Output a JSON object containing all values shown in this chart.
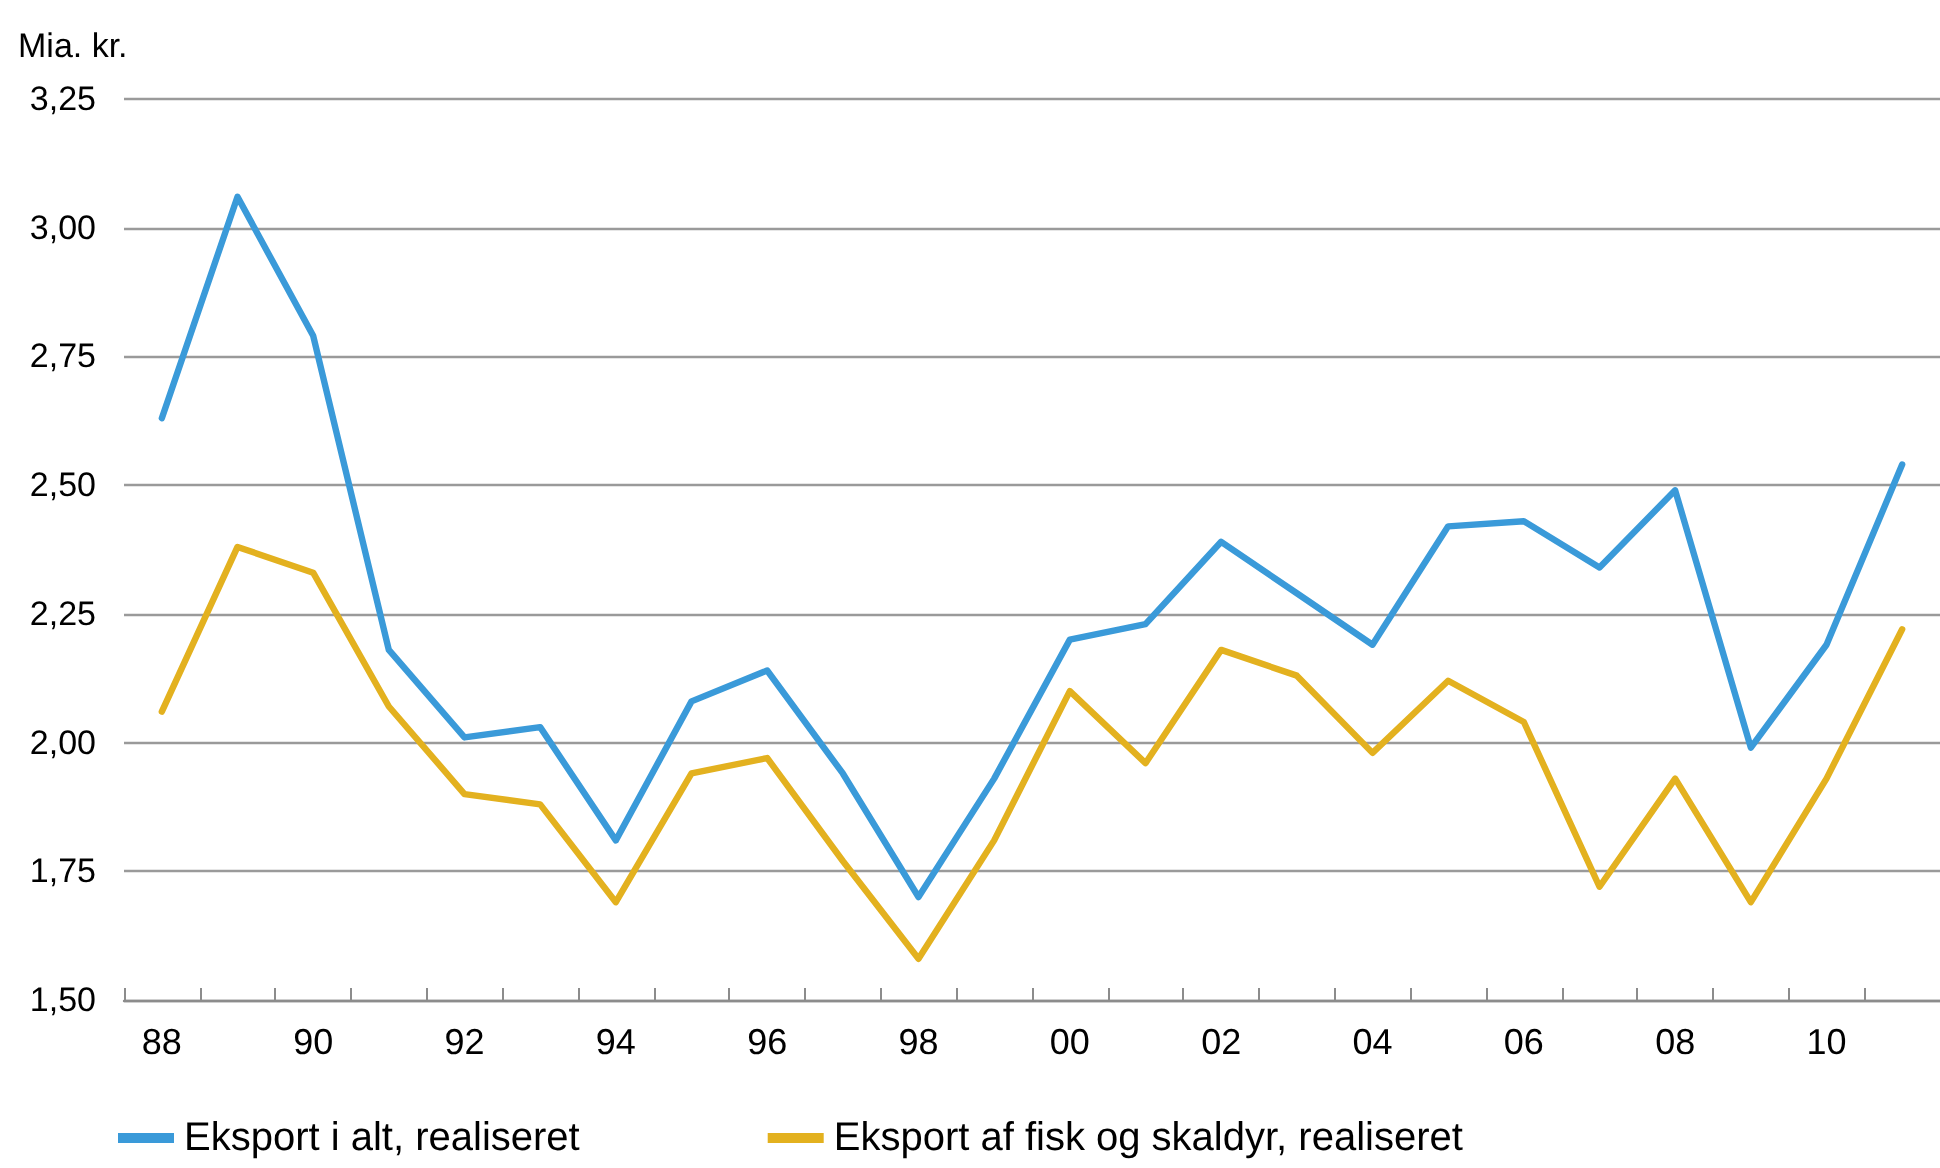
{
  "chart_data": {
    "type": "line",
    "ylabel": "Mia. kr.",
    "categories": [
      "88",
      null,
      "90",
      null,
      "92",
      null,
      "94",
      null,
      "96",
      null,
      "98",
      null,
      "00",
      null,
      "02",
      null,
      "04",
      null,
      "06",
      null,
      "08",
      null,
      "10",
      null
    ],
    "series": [
      {
        "name": "Eksport i alt, realiseret",
        "color": "#3a9ad9",
        "values": [
          2.63,
          3.06,
          2.79,
          2.18,
          2.01,
          2.03,
          1.81,
          2.08,
          2.14,
          1.94,
          1.7,
          1.93,
          2.2,
          2.23,
          2.39,
          2.29,
          2.19,
          2.42,
          2.43,
          2.34,
          2.49,
          1.99,
          2.19,
          2.54
        ]
      },
      {
        "name": "Eksport af fisk og skaldyr, realiseret",
        "color": "#e3b11f",
        "values": [
          2.06,
          2.38,
          2.33,
          2.07,
          1.9,
          1.88,
          1.69,
          1.94,
          1.97,
          1.77,
          1.58,
          1.81,
          2.1,
          1.96,
          2.18,
          2.13,
          1.98,
          2.12,
          2.04,
          1.72,
          1.93,
          1.69,
          1.93,
          2.22
        ]
      }
    ],
    "ylim": [
      1.5,
      3.25
    ],
    "yticks": [
      {
        "value": 1.5,
        "label": "1,50"
      },
      {
        "value": 1.75,
        "label": "1,75"
      },
      {
        "value": 2.0,
        "label": "2,00"
      },
      {
        "value": 2.25,
        "label": "2,25"
      },
      {
        "value": 2.5,
        "label": "2,50"
      },
      {
        "value": 2.75,
        "label": "2,75"
      },
      {
        "value": 3.0,
        "label": "3,00"
      },
      {
        "value": 3.25,
        "label": "3,25"
      }
    ],
    "grid": "y",
    "legend": "bottom left",
    "line_style": "solid"
  }
}
